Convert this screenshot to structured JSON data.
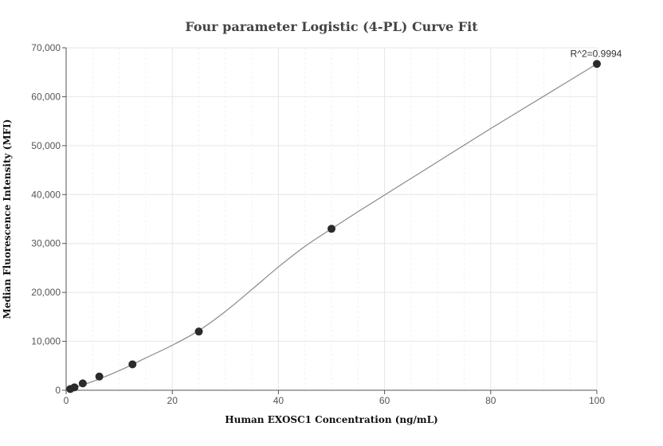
{
  "chart_data": {
    "type": "scatter",
    "title": "Four parameter Logistic (4-PL) Curve Fit",
    "xlabel": "Human EXOSC1 Concentration (ng/mL)",
    "ylabel": "Median Fluorescence Intensity (MFI)",
    "xlim": [
      0,
      100
    ],
    "ylim": [
      0,
      70000
    ],
    "x_ticks": [
      0,
      20,
      40,
      60,
      80,
      100
    ],
    "y_ticks": [
      0,
      10000,
      20000,
      30000,
      40000,
      50000,
      60000,
      70000
    ],
    "x_tick_labels": [
      "0",
      "20",
      "40",
      "60",
      "80",
      "100"
    ],
    "y_tick_labels": [
      "0",
      "10,000",
      "20,000",
      "30,000",
      "40,000",
      "50,000",
      "60,000",
      "70,000"
    ],
    "grid": true,
    "series": [
      {
        "points": [
          {
            "x": 0.78,
            "y": 250
          },
          {
            "x": 1.56,
            "y": 600
          },
          {
            "x": 3.13,
            "y": 1400
          },
          {
            "x": 6.25,
            "y": 2800
          },
          {
            "x": 12.5,
            "y": 5300
          },
          {
            "x": 25,
            "y": 12000
          },
          {
            "x": 50,
            "y": 33000
          },
          {
            "x": 100,
            "y": 66700
          }
        ]
      }
    ],
    "fit_curve": [
      {
        "x": 0,
        "y": 0
      },
      {
        "x": 5,
        "y": 1800
      },
      {
        "x": 10,
        "y": 4000
      },
      {
        "x": 15,
        "y": 6600
      },
      {
        "x": 20,
        "y": 9200
      },
      {
        "x": 25,
        "y": 12200
      },
      {
        "x": 30,
        "y": 16100
      },
      {
        "x": 35,
        "y": 20600
      },
      {
        "x": 40,
        "y": 25200
      },
      {
        "x": 45,
        "y": 29400
      },
      {
        "x": 50,
        "y": 33000
      },
      {
        "x": 55,
        "y": 36500
      },
      {
        "x": 60,
        "y": 39900
      },
      {
        "x": 70,
        "y": 46700
      },
      {
        "x": 80,
        "y": 53500
      },
      {
        "x": 90,
        "y": 60100
      },
      {
        "x": 100,
        "y": 66700
      }
    ],
    "annotation": {
      "text": "R^2=0.9994",
      "x": 100,
      "y": 66700
    }
  }
}
